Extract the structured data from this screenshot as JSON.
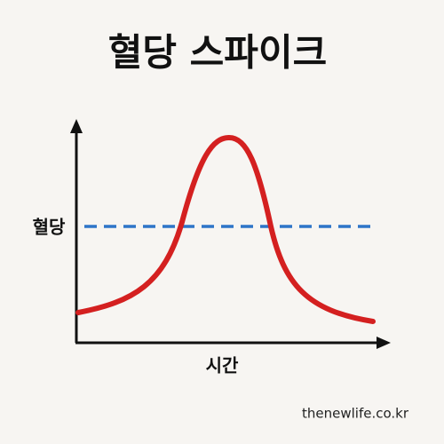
{
  "header": {
    "title": "혈당 스파이크"
  },
  "axes": {
    "y_label": "혈당",
    "x_label": "시간"
  },
  "footer": {
    "watermark": "thenewlife.co.kr"
  }
}
